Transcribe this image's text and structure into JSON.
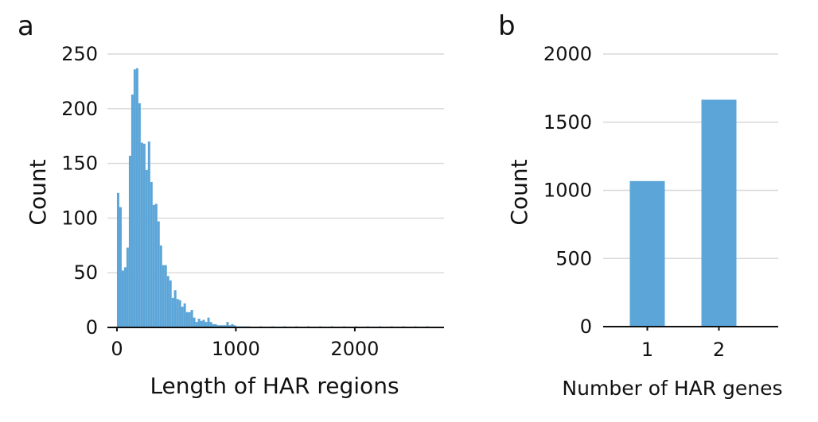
{
  "chart_data": [
    {
      "panel": "a",
      "type": "bar",
      "xlabel": "Length of HAR regions",
      "ylabel": "Count",
      "xlim": [
        -80,
        2750
      ],
      "ylim": [
        0,
        250
      ],
      "xticks": [
        "0",
        "1000",
        "2000"
      ],
      "xtick_values": [
        0,
        1000,
        2000
      ],
      "yticks": [
        "0",
        "50",
        "100",
        "150",
        "200",
        "250"
      ],
      "ytick_values": [
        0,
        50,
        100,
        150,
        200,
        250
      ],
      "grid": true,
      "bin_width": 20,
      "bins_start": [
        0,
        20,
        40,
        60,
        80,
        100,
        120,
        140,
        160,
        180,
        200,
        220,
        240,
        260,
        280,
        300,
        320,
        340,
        360,
        380,
        400,
        420,
        440,
        460,
        480,
        500,
        520,
        540,
        560,
        580,
        600,
        620,
        640,
        660,
        680,
        700,
        720,
        740,
        760,
        780,
        800,
        820,
        840,
        860,
        880,
        900,
        920,
        940,
        960,
        980,
        1000,
        1020,
        1040,
        1060,
        1080,
        1100,
        1200,
        1300,
        1400,
        1500,
        1600,
        1700,
        1800,
        1900,
        2000,
        2100,
        2200,
        2300,
        2400,
        2500,
        2600
      ],
      "counts": [
        123,
        110,
        52,
        55,
        73,
        157,
        213,
        236,
        237,
        205,
        169,
        168,
        144,
        170,
        133,
        112,
        113,
        97,
        75,
        57,
        57,
        47,
        43,
        27,
        34,
        26,
        25,
        19,
        22,
        14,
        14,
        16,
        9,
        5,
        8,
        6,
        7,
        5,
        9,
        5,
        3,
        3,
        2,
        2,
        2,
        2,
        5,
        2,
        3,
        2,
        1,
        1,
        1,
        1,
        1,
        1,
        1,
        1,
        1,
        1,
        1,
        1,
        1,
        1,
        1,
        1,
        1,
        1,
        1,
        1,
        1
      ]
    },
    {
      "panel": "b",
      "type": "bar",
      "xlabel": "Number of HAR genes",
      "ylabel": "Count",
      "categories": [
        "1",
        "2"
      ],
      "values": [
        1068,
        1665
      ],
      "ylim": [
        0,
        2000
      ],
      "yticks": [
        "0",
        "500",
        "1000",
        "1500",
        "2000"
      ],
      "ytick_values": [
        0,
        500,
        1000,
        1500,
        2000
      ],
      "grid": true
    }
  ],
  "colors": {
    "bar": "#5ca5d8",
    "grid": "#d8d8d8",
    "axis": "#111111"
  }
}
